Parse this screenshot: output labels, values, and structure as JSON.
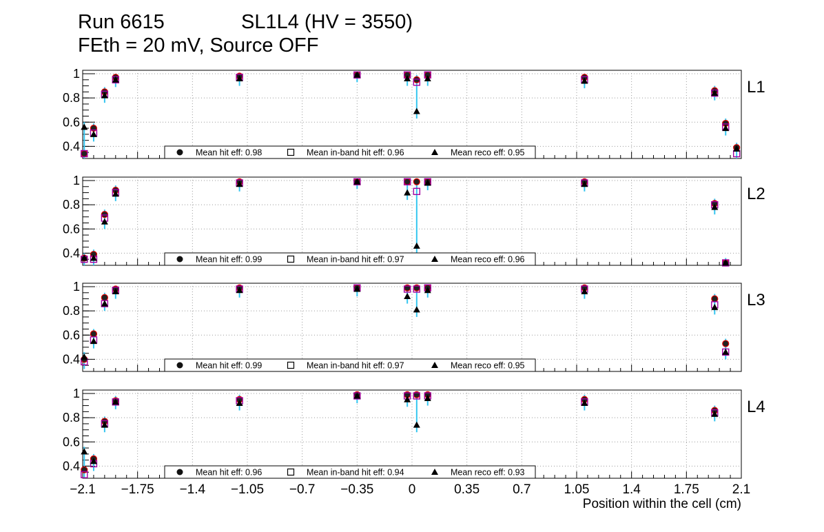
{
  "titles": {
    "run": "Run 6615",
    "chamber": "SL1L4 (HV = 3550)",
    "conditions": "FEth = 20 mV, Source OFF"
  },
  "x_axis": {
    "label": "Position within the cell (cm)",
    "tick_labels": [
      "−2.1",
      "−1.75",
      "−1.4",
      "−1.05",
      "−0.7",
      "−0.35",
      "0",
      "0.35",
      "0.7",
      "1.05",
      "1.4",
      "1.75",
      "2.1"
    ]
  },
  "colors": {
    "errorbar": "#33c5f0",
    "hit_marker_edge": "#e00000",
    "inband_marker_edge": "#a000a0",
    "grid": "#999999"
  },
  "chart_data": [
    {
      "type": "scatter",
      "panel_label": "L1",
      "xlim": [
        -2.1,
        2.1
      ],
      "ylim": [
        0.3,
        1.0
      ],
      "y_tick_labels": [
        "0.4",
        "0.6",
        "0.8",
        "1"
      ],
      "grid": true,
      "legend_position": "bottom-center",
      "legend": [
        {
          "name": "Mean hit  eff: 0.98",
          "marker": "circle"
        },
        {
          "name": "Mean in-band hit eff: 0.96",
          "marker": "open-square"
        },
        {
          "name": "Mean reco eff: 0.95",
          "marker": "triangle"
        }
      ],
      "series": [
        {
          "name": "hit",
          "x": [
            -2.09,
            -2.03,
            -1.96,
            -1.89,
            -1.1,
            -0.35,
            -0.03,
            0.03,
            0.1,
            1.1,
            1.93,
            2.0,
            2.07
          ],
          "values": [
            0.34,
            0.55,
            0.85,
            0.97,
            0.98,
            0.99,
            0.99,
            0.95,
            0.99,
            0.97,
            0.86,
            0.59,
            0.39
          ]
        },
        {
          "name": "inband",
          "x": [
            -2.09,
            -2.03,
            -1.96,
            -1.89,
            -1.1,
            -0.35,
            -0.03,
            0.03,
            0.1,
            1.1,
            1.93,
            2.0,
            2.07
          ],
          "values": [
            0.34,
            0.51,
            0.83,
            0.95,
            0.97,
            0.99,
            0.99,
            0.93,
            0.99,
            0.95,
            0.84,
            0.56,
            0.34
          ]
        },
        {
          "name": "reco",
          "x": [
            -2.09,
            -2.03,
            -1.96,
            -1.89,
            -1.1,
            -0.35,
            -0.03,
            0.03,
            0.1,
            1.1,
            1.93,
            2.0,
            2.07
          ],
          "values": [
            0.56,
            0.5,
            0.82,
            0.95,
            0.96,
            0.99,
            0.96,
            0.69,
            0.96,
            0.94,
            0.84,
            0.55,
            0.38
          ]
        }
      ]
    },
    {
      "type": "scatter",
      "panel_label": "L2",
      "xlim": [
        -2.1,
        2.1
      ],
      "ylim": [
        0.3,
        1.0
      ],
      "y_tick_labels": [
        "0.4",
        "0.6",
        "0.8",
        "1"
      ],
      "grid": true,
      "legend_position": "bottom-center",
      "legend": [
        {
          "name": "Mean hit  eff: 0.99",
          "marker": "circle"
        },
        {
          "name": "Mean in-band hit eff: 0.97",
          "marker": "open-square"
        },
        {
          "name": "Mean reco eff: 0.96",
          "marker": "triangle"
        }
      ],
      "series": [
        {
          "name": "hit",
          "x": [
            -2.09,
            -2.03,
            -1.96,
            -1.89,
            -1.1,
            -0.35,
            -0.03,
            0.03,
            0.1,
            1.1,
            1.93,
            2.0,
            2.07
          ],
          "values": [
            0.36,
            0.39,
            0.72,
            0.92,
            0.99,
            0.99,
            0.99,
            0.99,
            0.99,
            0.99,
            0.81,
            0.32,
            null
          ]
        },
        {
          "name": "inband",
          "x": [
            -2.09,
            -2.03,
            -1.96,
            -1.89,
            -1.1,
            -0.35,
            -0.03,
            0.03,
            0.1,
            1.1,
            1.93,
            2.0,
            2.07
          ],
          "values": [
            0.35,
            0.35,
            0.69,
            0.9,
            0.98,
            0.99,
            0.99,
            0.91,
            0.99,
            0.98,
            0.8,
            0.32,
            null
          ]
        },
        {
          "name": "reco",
          "x": [
            -2.09,
            -2.03,
            -1.96,
            -1.89,
            -1.1,
            -0.35,
            -0.03,
            0.03,
            0.1,
            1.1,
            1.93,
            2.0,
            2.07
          ],
          "values": [
            0.36,
            0.36,
            0.66,
            0.89,
            0.97,
            0.99,
            0.9,
            0.46,
            0.98,
            0.97,
            0.78,
            0.32,
            null
          ]
        }
      ]
    },
    {
      "type": "scatter",
      "panel_label": "L3",
      "xlim": [
        -2.1,
        2.1
      ],
      "ylim": [
        0.3,
        1.0
      ],
      "y_tick_labels": [
        "0.4",
        "0.6",
        "0.8",
        "1"
      ],
      "grid": true,
      "legend_position": "bottom-center",
      "legend": [
        {
          "name": "Mean hit  eff: 0.99",
          "marker": "circle"
        },
        {
          "name": "Mean in-band hit eff: 0.97",
          "marker": "open-square"
        },
        {
          "name": "Mean reco eff: 0.95",
          "marker": "triangle"
        }
      ],
      "series": [
        {
          "name": "hit",
          "x": [
            -2.09,
            -2.03,
            -1.96,
            -1.89,
            -1.1,
            -0.35,
            -0.03,
            0.03,
            0.1,
            1.1,
            1.93,
            2.0,
            2.07
          ],
          "values": [
            0.4,
            0.61,
            0.91,
            0.98,
            0.99,
            0.99,
            0.99,
            0.99,
            0.99,
            0.99,
            0.9,
            0.53,
            null
          ]
        },
        {
          "name": "inband",
          "x": [
            -2.09,
            -2.03,
            -1.96,
            -1.89,
            -1.1,
            -0.35,
            -0.03,
            0.03,
            0.1,
            1.1,
            1.93,
            2.0,
            2.07
          ],
          "values": [
            0.38,
            0.56,
            0.86,
            0.97,
            0.98,
            0.99,
            0.98,
            0.98,
            0.99,
            0.98,
            0.85,
            0.46,
            null
          ]
        },
        {
          "name": "reco",
          "x": [
            -2.09,
            -2.03,
            -1.96,
            -1.89,
            -1.1,
            -0.35,
            -0.03,
            0.03,
            0.1,
            1.1,
            1.93,
            2.0,
            2.07
          ],
          "values": [
            0.42,
            0.55,
            0.86,
            0.96,
            0.97,
            0.98,
            0.92,
            0.81,
            0.97,
            0.96,
            0.83,
            0.46,
            null
          ]
        }
      ]
    },
    {
      "type": "scatter",
      "panel_label": "L4",
      "xlim": [
        -2.1,
        2.1
      ],
      "ylim": [
        0.3,
        1.0
      ],
      "y_tick_labels": [
        "0.4",
        "0.6",
        "0.8",
        "1"
      ],
      "grid": true,
      "legend_position": "bottom-center",
      "legend": [
        {
          "name": "Mean hit  eff: 0.96",
          "marker": "circle"
        },
        {
          "name": "Mean in-band hit eff: 0.94",
          "marker": "open-square"
        },
        {
          "name": "Mean reco eff: 0.93",
          "marker": "triangle"
        }
      ],
      "series": [
        {
          "name": "hit",
          "x": [
            -2.09,
            -2.03,
            -1.96,
            -1.89,
            -1.1,
            -0.35,
            -0.03,
            0.03,
            0.1,
            1.1,
            1.93,
            2.0,
            2.07
          ],
          "values": [
            0.37,
            0.46,
            0.77,
            0.94,
            0.95,
            0.99,
            0.99,
            0.99,
            0.99,
            0.95,
            0.86,
            null,
            null
          ]
        },
        {
          "name": "inband",
          "x": [
            -2.09,
            -2.03,
            -1.96,
            -1.89,
            -1.1,
            -0.35,
            -0.03,
            0.03,
            0.1,
            1.1,
            1.93,
            2.0,
            2.07
          ],
          "values": [
            0.33,
            0.42,
            0.75,
            0.93,
            0.94,
            0.98,
            0.98,
            0.98,
            0.98,
            0.93,
            0.84,
            null,
            null
          ]
        },
        {
          "name": "reco",
          "x": [
            -2.09,
            -2.03,
            -1.96,
            -1.89,
            -1.1,
            -0.35,
            -0.03,
            0.03,
            0.1,
            1.1,
            1.93,
            2.0,
            2.07
          ],
          "values": [
            0.52,
            0.44,
            0.74,
            0.93,
            0.92,
            0.98,
            0.95,
            0.74,
            0.96,
            0.92,
            0.83,
            null,
            null
          ]
        }
      ]
    }
  ]
}
